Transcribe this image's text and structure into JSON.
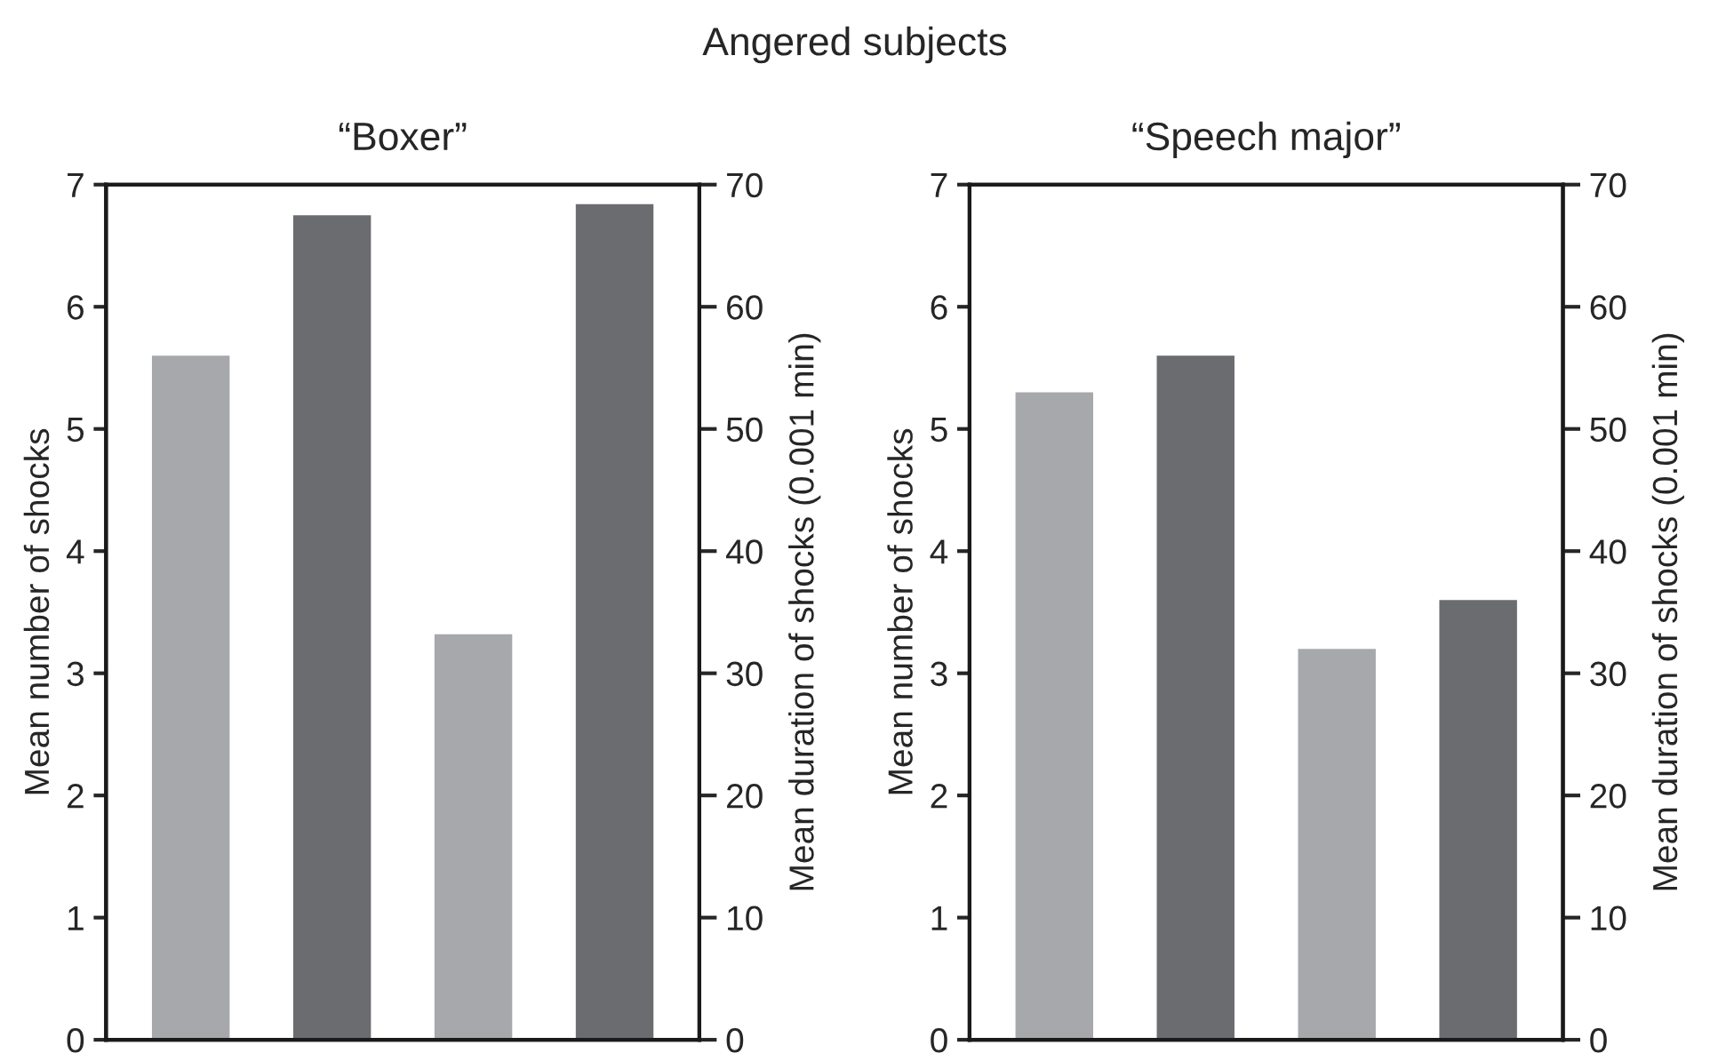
{
  "chart_data": [
    {
      "type": "bar",
      "title": "“Boxer”",
      "annotations": [
        "Angered subjects"
      ],
      "ylabel": "Mean number of shocks",
      "y2label": "Mean duration of shocks (0.001 min)",
      "categories": [
        null,
        null,
        null,
        null
      ],
      "ylim": [
        0,
        7
      ],
      "yticks": [
        0,
        1,
        2,
        3,
        4,
        5,
        6,
        7
      ],
      "y2lim": [
        0,
        70
      ],
      "y2ticks": [
        0,
        10,
        20,
        30,
        40,
        50,
        60,
        70
      ],
      "grid": false,
      "series": [
        {
          "colors": [
            "#a7a8ab",
            "#6b6c70",
            "#a7a8ab",
            "#6b6c70"
          ],
          "values": [
            5.6,
            6.75,
            null,
            null
          ]
        },
        {
          "axis": "y2",
          "colors": [
            "#a7a8ab",
            "#6b6c70",
            "#a7a8ab",
            "#6b6c70"
          ],
          "values": [
            null,
            null,
            33.2,
            68.4
          ]
        }
      ]
    },
    {
      "type": "bar",
      "title": "“Speech major”",
      "ylabel": "Mean number of shocks",
      "y2label": "Mean duration of shocks (0.001 min)",
      "categories": [
        null,
        null,
        null,
        null
      ],
      "ylim": [
        0,
        7
      ],
      "yticks": [
        0,
        1,
        2,
        3,
        4,
        5,
        6,
        7
      ],
      "y2lim": [
        0,
        70
      ],
      "y2ticks": [
        0,
        10,
        20,
        30,
        40,
        50,
        60,
        70
      ],
      "grid": false,
      "series": [
        {
          "colors": [
            "#a7a8ab",
            "#6b6c70",
            "#a7a8ab",
            "#6b6c70"
          ],
          "values": [
            5.3,
            5.6,
            null,
            null
          ]
        },
        {
          "axis": "y2",
          "colors": [
            "#a7a8ab",
            "#6b6c70",
            "#a7a8ab",
            "#6b6c70"
          ],
          "values": [
            null,
            null,
            32,
            36
          ]
        }
      ]
    }
  ]
}
